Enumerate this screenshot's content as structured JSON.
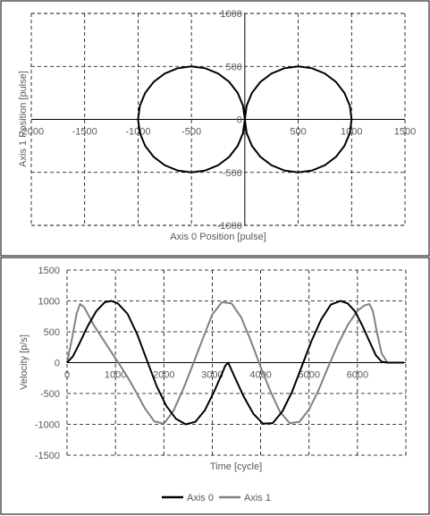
{
  "chart_data": [
    {
      "type": "scatter",
      "xlabel": "Axis 0 Position [pulse]",
      "ylabel": "Axis 1 Position [pulse]",
      "xlim": [
        -2000,
        1500
      ],
      "ylim": [
        -1000,
        1000
      ],
      "x_ticks": [
        "-2000",
        "-1500",
        "-1000",
        "-500",
        "0",
        "500",
        "1000",
        "1500"
      ],
      "y_ticks": [
        "1000",
        "500",
        "0",
        "-500",
        "-1000"
      ],
      "grid": true,
      "series": [
        {
          "points": [
            [
              0,
              0
            ],
            [
              16.9,
              129.4
            ],
            [
              66.9,
              250
            ],
            [
              146.4,
              353.6
            ],
            [
              250,
              433
            ],
            [
              370.6,
              483
            ],
            [
              500,
              500
            ],
            [
              629.4,
              483
            ],
            [
              750,
              433
            ],
            [
              853.6,
              353.6
            ],
            [
              933,
              250
            ],
            [
              983,
              129.4
            ],
            [
              1000,
              0
            ],
            [
              983,
              -129.4
            ],
            [
              933,
              -250
            ],
            [
              853.6,
              -353.6
            ],
            [
              750,
              -433
            ],
            [
              629.4,
              -483
            ],
            [
              500,
              -500
            ],
            [
              370.6,
              -483
            ],
            [
              250,
              -433
            ],
            [
              146.4,
              -353.6
            ],
            [
              66.9,
              -250
            ],
            [
              16.9,
              -129.4
            ],
            [
              0,
              0
            ],
            [
              -16.9,
              -129.4
            ],
            [
              -66.9,
              -250
            ],
            [
              -146.4,
              -353.6
            ],
            [
              -250,
              -433
            ],
            [
              -370.6,
              -483
            ],
            [
              -500,
              -500
            ],
            [
              -629.4,
              -483
            ],
            [
              -750,
              -433
            ],
            [
              -853.6,
              -353.6
            ],
            [
              -933,
              -250
            ],
            [
              -983,
              -129.4
            ],
            [
              -1000,
              0
            ],
            [
              -983,
              129.4
            ],
            [
              -933,
              250
            ],
            [
              -853.6,
              353.6
            ],
            [
              -750,
              433
            ],
            [
              -629.4,
              483
            ],
            [
              -500,
              500
            ],
            [
              -370.6,
              483
            ],
            [
              -250,
              433
            ],
            [
              -146.4,
              353.6
            ],
            [
              -66.9,
              250
            ],
            [
              -16.9,
              129.4
            ],
            [
              0,
              0
            ]
          ]
        }
      ]
    },
    {
      "type": "line",
      "xlabel": "Time [cycle]",
      "ylabel": "Velocity [p/s]",
      "xlim": [
        0,
        7000
      ],
      "ylim": [
        -1500,
        1500
      ],
      "x_ticks": [
        "0",
        "1000",
        "2000",
        "3000",
        "4000",
        "5000",
        "6000"
      ],
      "y_ticks": [
        "1500",
        "1000",
        "500",
        "0",
        "-500",
        "-1000",
        "-1500"
      ],
      "grid": true,
      "legend_position": "bottom",
      "series": [
        {
          "name": "Axis 0",
          "color": "#000000",
          "x": [
            0,
            120,
            250,
            420,
            600,
            780,
            920,
            1050,
            1250,
            1450,
            1650,
            1850,
            2050,
            2250,
            2450,
            2650,
            2850,
            3050,
            3200,
            3270,
            3330,
            3450,
            3650,
            3850,
            4050,
            4250,
            4450,
            4650,
            4850,
            5050,
            5250,
            5450,
            5650,
            5800,
            5950,
            6100,
            6250,
            6380,
            6500,
            6620,
            6960
          ],
          "y": [
            0,
            100,
            300,
            580,
            830,
            980,
            1000,
            960,
            790,
            460,
            40,
            -380,
            -700,
            -910,
            -1000,
            -960,
            -770,
            -450,
            -180,
            -50,
            0,
            -210,
            -550,
            -830,
            -990,
            -980,
            -790,
            -470,
            -60,
            350,
            700,
            940,
            1000,
            960,
            830,
            600,
            340,
            120,
            15,
            0,
            0
          ]
        },
        {
          "name": "Axis 1",
          "color": "#808080",
          "x": [
            0,
            100,
            200,
            270,
            350,
            450,
            550,
            700,
            850,
            1000,
            1150,
            1300,
            1450,
            1600,
            1800,
            2000,
            2200,
            2400,
            2600,
            2800,
            3000,
            3200,
            3400,
            3600,
            3800,
            4000,
            4200,
            4400,
            4600,
            4800,
            5000,
            5200,
            5400,
            5600,
            5800,
            6000,
            6150,
            6250,
            6320,
            6400,
            6500,
            6620,
            6960
          ],
          "y": [
            0,
            380,
            800,
            950,
            900,
            760,
            610,
            430,
            250,
            70,
            -110,
            -300,
            -510,
            -730,
            -950,
            -990,
            -780,
            -430,
            -30,
            380,
            780,
            980,
            960,
            730,
            350,
            -70,
            -460,
            -800,
            -980,
            -960,
            -760,
            -440,
            -60,
            300,
            610,
            840,
            930,
            950,
            830,
            500,
            150,
            0,
            0
          ]
        }
      ]
    }
  ],
  "legend": [
    {
      "label": "Axis 0",
      "color": "#000000"
    },
    {
      "label": "Axis 1",
      "color": "#808080"
    }
  ]
}
